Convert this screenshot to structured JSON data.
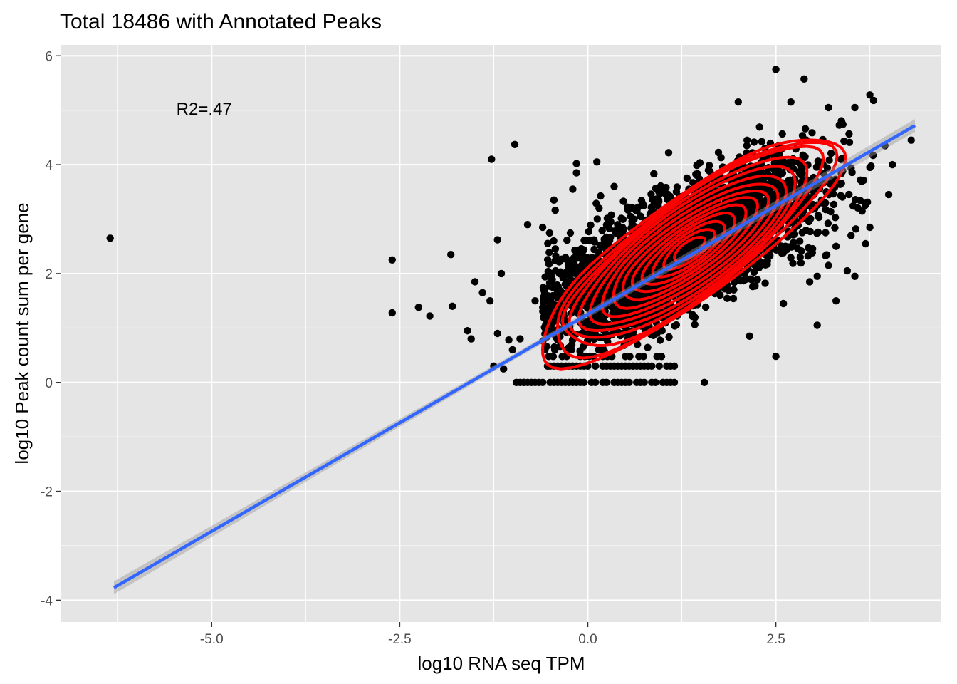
{
  "chart_data": {
    "type": "scatter",
    "title": "Total 18486 with Annotated Peaks",
    "xlabel": "log10 RNA seq TPM",
    "ylabel": "log10 Peak count sum per gene",
    "xlim": [
      -7.0,
      4.7
    ],
    "ylim": [
      -4.4,
      6.2
    ],
    "x_ticks": [
      -5.0,
      -2.5,
      0.0,
      2.5
    ],
    "x_tick_labels": [
      "-5.0",
      "-2.5",
      "0.0",
      "2.5"
    ],
    "y_ticks": [
      -4,
      -2,
      0,
      2,
      4,
      6
    ],
    "y_tick_labels": [
      "-4",
      "-2",
      "0",
      "2",
      "4",
      "6"
    ],
    "grid": true,
    "annotation": {
      "text": "R2=.47",
      "x": -5.1,
      "y": 5.0
    },
    "colors": {
      "panel": "#e5e5e5",
      "grid": "#ffffff",
      "points": "#000000",
      "fit_line": "#3366ff",
      "confidence_band": "#999999",
      "contours": "#ff0000"
    },
    "fit_line": {
      "x": [
        -6.3,
        4.35
      ],
      "y": [
        -3.77,
        4.72
      ]
    },
    "density_center": {
      "x": 1.35,
      "y": 2.45
    },
    "outlier_points": [
      [
        -6.35,
        2.65
      ],
      [
        -2.6,
        2.25
      ],
      [
        -2.6,
        1.28
      ],
      [
        -2.25,
        1.38
      ],
      [
        -2.1,
        1.22
      ],
      [
        -1.82,
        2.35
      ],
      [
        -1.8,
        1.4
      ],
      [
        -1.28,
        4.1
      ],
      [
        -1.25,
        0.3
      ],
      [
        -1.2,
        0.9
      ],
      [
        -1.05,
        0.78
      ],
      [
        -0.97,
        4.37
      ],
      [
        -1.15,
        2.0
      ],
      [
        -1.6,
        0.95
      ],
      [
        -1.55,
        0.8
      ],
      [
        -1.5,
        1.85
      ],
      [
        -1.4,
        1.65
      ],
      [
        -1.3,
        1.5
      ],
      [
        -1.12,
        0.25
      ],
      [
        -1.0,
        0.6
      ],
      [
        -0.9,
        0.8
      ],
      [
        -0.85,
        0.0
      ],
      [
        -1.2,
        2.62
      ],
      [
        -0.8,
        2.9
      ],
      [
        -0.6,
        2.85
      ],
      [
        0.12,
        4.05
      ],
      [
        -0.15,
        4.02
      ],
      [
        -0.15,
        3.85
      ],
      [
        -0.45,
        3.35
      ],
      [
        -0.2,
        3.55
      ],
      [
        0.35,
        3.6
      ],
      [
        0.15,
        3.2
      ],
      [
        2.0,
        5.15
      ],
      [
        2.5,
        5.75
      ],
      [
        2.7,
        5.15
      ],
      [
        3.75,
        5.28
      ],
      [
        3.8,
        5.18
      ],
      [
        3.55,
        5.05
      ],
      [
        3.2,
        5.05
      ],
      [
        3.95,
        4.35
      ],
      [
        4.3,
        4.45
      ],
      [
        4.05,
        4.0
      ],
      [
        3.75,
        3.95
      ],
      [
        4.0,
        3.45
      ],
      [
        3.75,
        2.85
      ],
      [
        3.5,
        2.7
      ],
      [
        3.3,
        2.5
      ],
      [
        3.2,
        2.15
      ],
      [
        3.45,
        2.05
      ],
      [
        3.55,
        1.95
      ],
      [
        3.05,
        1.95
      ],
      [
        2.95,
        1.85
      ],
      [
        3.3,
        1.5
      ],
      [
        3.05,
        1.05
      ],
      [
        2.5,
        0.48
      ],
      [
        2.15,
        0.85
      ],
      [
        1.55,
        0.0
      ],
      [
        2.6,
        1.45
      ],
      [
        -0.7,
        1.5
      ],
      [
        -0.5,
        1.0
      ]
    ],
    "zero_row_x_range": [
      -1.0,
      1.2
    ],
    "point_cloud": {
      "n": 4000,
      "x_mean": 1.25,
      "x_sd": 0.85,
      "slope": 0.62,
      "intercept": 1.65,
      "y_sd": 0.5
    }
  }
}
